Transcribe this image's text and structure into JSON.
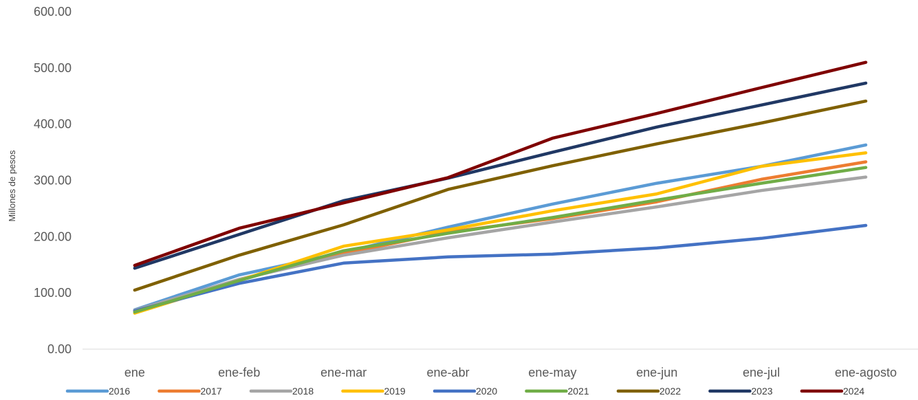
{
  "chart_data": {
    "type": "line",
    "title": "",
    "xlabel": "",
    "ylabel": "Millones de pesos",
    "categories": [
      "ene",
      "ene-feb",
      "ene-mar",
      "ene-abr",
      "ene-may",
      "ene-jun",
      "ene-jul",
      "ene-agosto"
    ],
    "ylim": [
      0,
      600
    ],
    "yticks": [
      "0.00",
      "100.00",
      "200.00",
      "300.00",
      "400.00",
      "500.00",
      "600.00"
    ],
    "grid": false,
    "legend": "bottom",
    "series": [
      {
        "name": "2016",
        "color": "#5B9BD5",
        "values": [
          70,
          132,
          172,
          217,
          258,
          295,
          325,
          363
        ]
      },
      {
        "name": "2017",
        "color": "#ED7D31",
        "values": [
          68,
          124,
          170,
          208,
          232,
          262,
          302,
          333
        ]
      },
      {
        "name": "2018",
        "color": "#A5A5A5",
        "values": [
          69,
          124,
          167,
          198,
          226,
          253,
          282,
          306
        ]
      },
      {
        "name": "2019",
        "color": "#FFC000",
        "values": [
          64,
          122,
          183,
          212,
          246,
          276,
          325,
          349
        ]
      },
      {
        "name": "2020",
        "color": "#4472C4",
        "values": [
          68,
          117,
          153,
          164,
          169,
          180,
          197,
          220
        ]
      },
      {
        "name": "2021",
        "color": "#70AD47",
        "values": [
          66,
          122,
          175,
          206,
          234,
          265,
          295,
          323
        ]
      },
      {
        "name": "2022",
        "color": "#7F6000",
        "values": [
          105,
          167,
          221,
          284,
          326,
          365,
          402,
          441
        ]
      },
      {
        "name": "2023",
        "color": "#203864",
        "values": [
          144,
          204,
          264,
          304,
          350,
          395,
          434,
          473
        ]
      },
      {
        "name": "2024",
        "color": "#7F0000",
        "values": [
          149,
          215,
          260,
          305,
          375,
          419,
          465,
          510
        ]
      }
    ]
  }
}
